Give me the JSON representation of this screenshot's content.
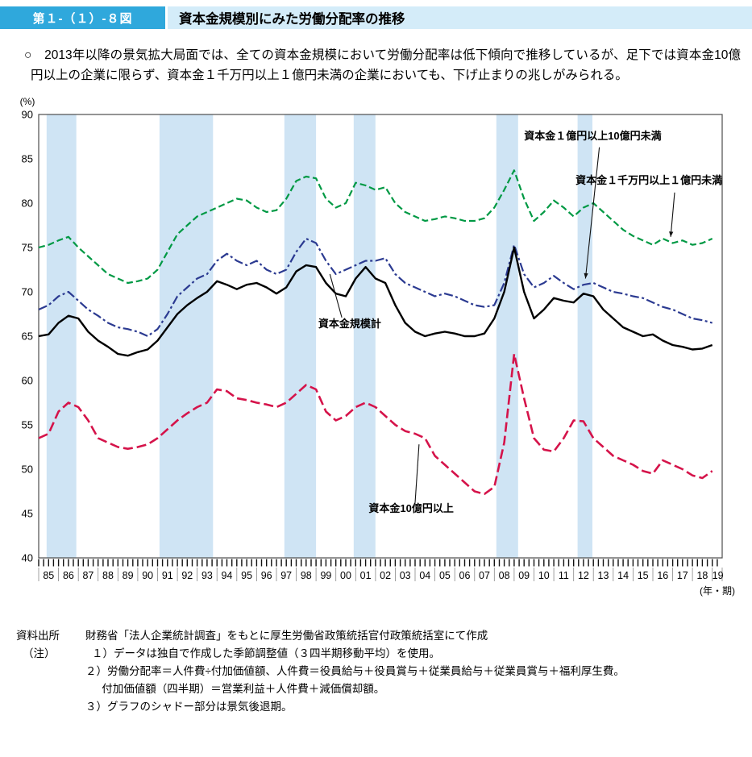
{
  "header": {
    "figure_number": "第１-（１）-８図",
    "title": "資本金規模別にみた労働分配率の推移"
  },
  "summary": {
    "bullet": "○　",
    "text": "2013年以降の景気拡大局面では、全ての資本金規模において労働分配率は低下傾向で推移しているが、足下では資本金10億円以上の企業に限らず、資本金１千万円以上１億円未満の企業においても、下げ止まりの兆しがみられる。"
  },
  "chart_data": {
    "type": "line",
    "y_unit_label": "(%)",
    "x_unit_label": "(年・期)",
    "ylim": [
      40,
      90
    ],
    "y_ticks": [
      40,
      45,
      50,
      55,
      60,
      65,
      70,
      75,
      80,
      85,
      90
    ],
    "x_range": [
      1985,
      2019.5
    ],
    "band_color": "#cfe4f4",
    "grid": false,
    "x_year_labels": [
      "85",
      "86",
      "87",
      "88",
      "89",
      "90",
      "91",
      "92",
      "93",
      "94",
      "95",
      "96",
      "97",
      "98",
      "99",
      "00",
      "01",
      "02",
      "03",
      "04",
      "05",
      "06",
      "07",
      "08",
      "09",
      "10",
      "11",
      "12",
      "13",
      "14",
      "15",
      "16",
      "17",
      "18",
      "19"
    ],
    "recession_bands": [
      [
        1985.4,
        1986.9
      ],
      [
        1991.1,
        1993.8
      ],
      [
        1997.4,
        1999.0
      ],
      [
        2000.9,
        2002.0
      ],
      [
        2008.1,
        2009.2
      ],
      [
        2012.2,
        2012.95
      ]
    ],
    "x": [
      1985,
      1985.5,
      1986,
      1986.5,
      1987,
      1987.5,
      1988,
      1988.5,
      1989,
      1989.5,
      1990,
      1990.5,
      1991,
      1991.5,
      1992,
      1992.5,
      1993,
      1993.5,
      1994,
      1994.5,
      1995,
      1995.5,
      1996,
      1996.5,
      1997,
      1997.5,
      1998,
      1998.5,
      1999,
      1999.5,
      2000,
      2000.5,
      2001,
      2001.5,
      2002,
      2002.5,
      2003,
      2003.5,
      2004,
      2004.5,
      2005,
      2005.5,
      2006,
      2006.5,
      2007,
      2007.5,
      2008,
      2008.5,
      2009,
      2009.5,
      2010,
      2010.5,
      2011,
      2011.5,
      2012,
      2012.5,
      2013,
      2013.5,
      2014,
      2014.5,
      2015,
      2015.5,
      2016,
      2016.5,
      2017,
      2017.5,
      2018,
      2018.5,
      2019
    ],
    "series": [
      {
        "id": "cap-10m-100m",
        "label": "資本金１千万円以上１億円未満",
        "color": "#009944",
        "style": "dashed",
        "width": 2.2,
        "values": [
          75.0,
          75.3,
          75.8,
          76.2,
          75.0,
          74.0,
          73.0,
          72.0,
          71.5,
          71.0,
          71.2,
          71.5,
          72.5,
          74.5,
          76.5,
          77.5,
          78.5,
          79.0,
          79.5,
          80.0,
          80.5,
          80.3,
          79.5,
          79.0,
          79.2,
          80.5,
          82.5,
          83.0,
          82.8,
          80.5,
          79.5,
          80.0,
          82.3,
          82.0,
          81.5,
          81.8,
          80.0,
          79.0,
          78.5,
          78.0,
          78.2,
          78.5,
          78.3,
          78.0,
          78.0,
          78.3,
          79.5,
          81.5,
          83.7,
          80.5,
          78.0,
          79.0,
          80.3,
          79.5,
          78.5,
          79.5,
          80.0,
          79.0,
          78.0,
          77.0,
          76.3,
          75.8,
          75.3,
          76.0,
          75.5,
          75.8,
          75.3,
          75.5,
          76.0
        ]
      },
      {
        "id": "cap-100m-1b",
        "label": "資本金１億円以上10億円未満",
        "color": "#2b3a91",
        "style": "dashdot",
        "width": 2.2,
        "values": [
          68.0,
          68.5,
          69.5,
          70.0,
          69.0,
          68.0,
          67.3,
          66.5,
          66.0,
          65.8,
          65.5,
          65.0,
          65.8,
          67.5,
          69.5,
          70.5,
          71.5,
          72.0,
          73.5,
          74.3,
          73.5,
          73.0,
          73.5,
          72.5,
          72.0,
          72.5,
          74.5,
          76.0,
          75.5,
          73.5,
          72.0,
          72.5,
          73.0,
          73.5,
          73.5,
          73.8,
          72.0,
          71.0,
          70.5,
          70.0,
          69.5,
          69.8,
          69.5,
          69.0,
          68.5,
          68.3,
          68.5,
          71.0,
          75.3,
          72.0,
          70.5,
          71.0,
          71.8,
          71.0,
          70.3,
          70.8,
          71.0,
          70.5,
          70.0,
          69.8,
          69.5,
          69.3,
          68.8,
          68.3,
          68.0,
          67.5,
          67.0,
          66.8,
          66.5
        ]
      },
      {
        "id": "total",
        "label": "資本金規模計",
        "color": "#000000",
        "style": "solid",
        "width": 2.4,
        "values": [
          65.0,
          65.2,
          66.5,
          67.3,
          67.0,
          65.5,
          64.5,
          63.8,
          63.0,
          62.8,
          63.2,
          63.5,
          64.5,
          66.0,
          67.5,
          68.5,
          69.3,
          70.0,
          71.2,
          70.8,
          70.3,
          70.8,
          71.0,
          70.5,
          69.8,
          70.5,
          72.3,
          73.0,
          72.8,
          71.0,
          69.8,
          69.5,
          71.5,
          72.8,
          71.5,
          71.0,
          68.5,
          66.5,
          65.5,
          65.0,
          65.3,
          65.5,
          65.3,
          65.0,
          65.0,
          65.3,
          67.0,
          70.0,
          75.0,
          70.0,
          67.0,
          68.0,
          69.3,
          69.0,
          68.8,
          69.8,
          69.5,
          68.0,
          67.0,
          66.0,
          65.5,
          65.0,
          65.2,
          64.5,
          64.0,
          63.8,
          63.5,
          63.6,
          64.0
        ]
      },
      {
        "id": "cap-over-1b",
        "label": "資本金10億円以上",
        "color": "#d5134a",
        "style": "longdash",
        "width": 2.6,
        "values": [
          53.5,
          54.0,
          56.5,
          57.5,
          57.0,
          55.5,
          53.5,
          53.0,
          52.5,
          52.3,
          52.5,
          52.8,
          53.5,
          54.5,
          55.5,
          56.3,
          57.0,
          57.5,
          59.0,
          58.8,
          58.0,
          57.8,
          57.5,
          57.3,
          57.0,
          57.5,
          58.5,
          59.5,
          59.0,
          56.5,
          55.5,
          56.0,
          57.0,
          57.5,
          57.0,
          56.0,
          55.0,
          54.3,
          54.0,
          53.5,
          51.5,
          50.5,
          49.5,
          48.5,
          47.5,
          47.2,
          48.0,
          53.0,
          63.0,
          58.0,
          53.5,
          52.2,
          52.0,
          53.5,
          55.5,
          55.4,
          53.5,
          52.5,
          51.5,
          51.0,
          50.5,
          49.8,
          49.5,
          51.0,
          50.5,
          50.0,
          49.3,
          49.0,
          49.8
        ]
      }
    ],
    "annotations": [
      {
        "id": "a1",
        "text": "資本金１億円以上10億円未満",
        "tx": 2009.5,
        "ty": 87.2,
        "align": "start",
        "line": [
          [
            2013.3,
            86.3
          ],
          [
            2012.6,
            71.5
          ]
        ],
        "arrow": true
      },
      {
        "id": "a2",
        "text": "資本金１千万円以上１億円未満",
        "tx": 2012.1,
        "ty": 82.2,
        "align": "start",
        "line": [
          [
            2017.1,
            81.2
          ],
          [
            2016.9,
            76.2
          ]
        ],
        "arrow": true
      },
      {
        "id": "a3",
        "text": "資本金規模計",
        "tx": 2000.7,
        "ty": 66.0,
        "align": "middle",
        "line": [
          [
            2000.3,
            67.1
          ],
          [
            1999.7,
            72.0
          ]
        ],
        "arrow": false
      },
      {
        "id": "a4",
        "text": "資本金10億円以上",
        "tx": 2003.8,
        "ty": 45.2,
        "align": "middle",
        "line": [
          [
            2004.0,
            46.2
          ],
          [
            2004.2,
            52.8
          ]
        ],
        "arrow": false
      }
    ]
  },
  "footer": {
    "source_label": "資料出所",
    "source_text": "財務省「法人企業統計調査」をもとに厚生労働省政策統括官付政策統括室にて作成",
    "note_label": "（注）",
    "notes": [
      "１）データは独自で作成した季節調整値（３四半期移動平均）を使用。",
      "２）労働分配率＝人件費÷付加価値額、人件費＝役員給与＋役員賞与＋従業員給与＋従業員賞与＋福利厚生費。",
      "付加価値額（四半期）＝営業利益＋人件費＋減価償却額。",
      "３）グラフのシャドー部分は景気後退期。"
    ]
  }
}
